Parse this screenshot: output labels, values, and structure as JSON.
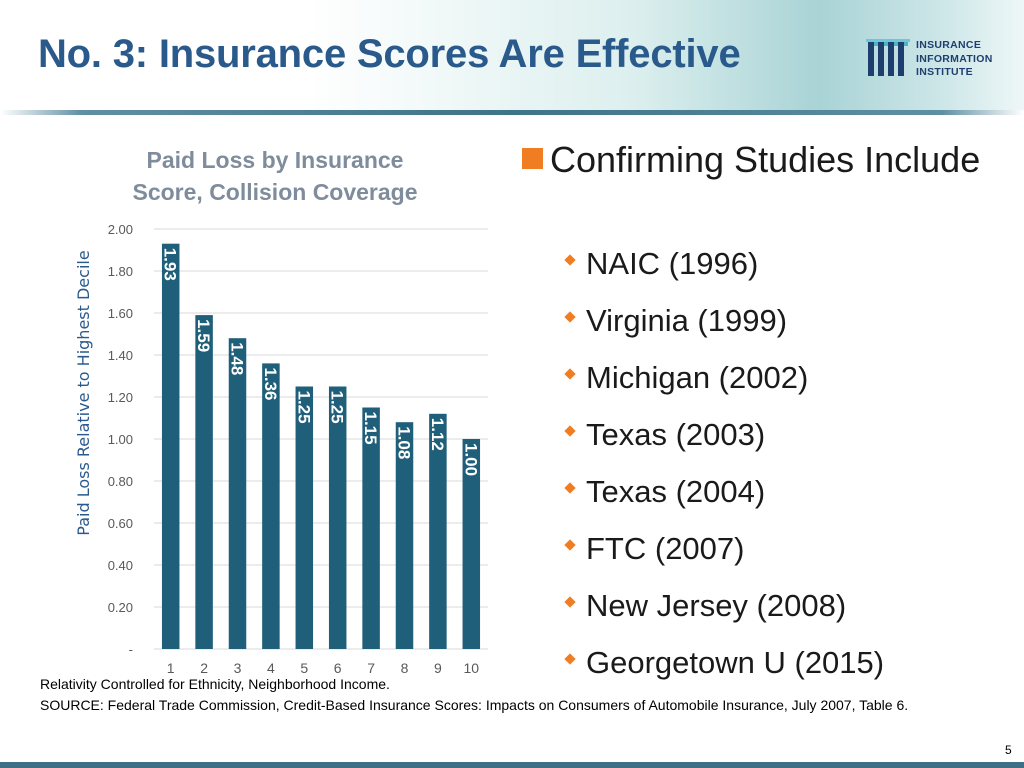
{
  "title": "No. 3: Insurance Scores Are Effective",
  "logo": {
    "lines": [
      "INSURANCE",
      "INFORMATION",
      "INSTITUTE"
    ]
  },
  "chart_title_lines": [
    "Paid Loss by Insurance",
    "Score, Collision Coverage"
  ],
  "chart_data": {
    "type": "bar",
    "categories": [
      "1",
      "2",
      "3",
      "4",
      "5",
      "6",
      "7",
      "8",
      "9",
      "10"
    ],
    "values": [
      1.93,
      1.59,
      1.48,
      1.36,
      1.25,
      1.25,
      1.15,
      1.08,
      1.12,
      1.0
    ],
    "data_labels": [
      "1.93",
      "1.59",
      "1.48",
      "1.36",
      "1.25",
      "1.25",
      "1.15",
      "1.08",
      "1.12",
      "1.00"
    ],
    "ylabel": "Paid Loss Relative to Highest Decile",
    "xlabel": "",
    "ylim": [
      0,
      2
    ],
    "y_ticks": [
      "-",
      "0.20",
      "0.40",
      "0.60",
      "0.80",
      "1.00",
      "1.20",
      "1.40",
      "1.60",
      "1.80",
      "2.00"
    ],
    "grid": true,
    "bar_color": "#1f5f7a",
    "label_color": "#ffffff"
  },
  "bullets": {
    "lead": "Confirming Studies Include",
    "items": [
      "NAIC (1996)",
      "Virginia (1999)",
      "Michigan (2002)",
      "Texas (2003)",
      "Texas (2004)",
      "FTC (2007)",
      "New Jersey (2008)",
      "Georgetown U (2015)"
    ]
  },
  "notes": {
    "relativity": "Relativity Controlled for Ethnicity, Neighborhood Income.",
    "source": "SOURCE: Federal Trade Commission, Credit-Based Insurance Scores: Impacts on Consumers of Automobile Insurance, July 2007, Table 6."
  },
  "page_number": "5",
  "colors": {
    "title": "#2a5a8c",
    "accent": "#f07d22",
    "bar": "#1f5f7a"
  }
}
